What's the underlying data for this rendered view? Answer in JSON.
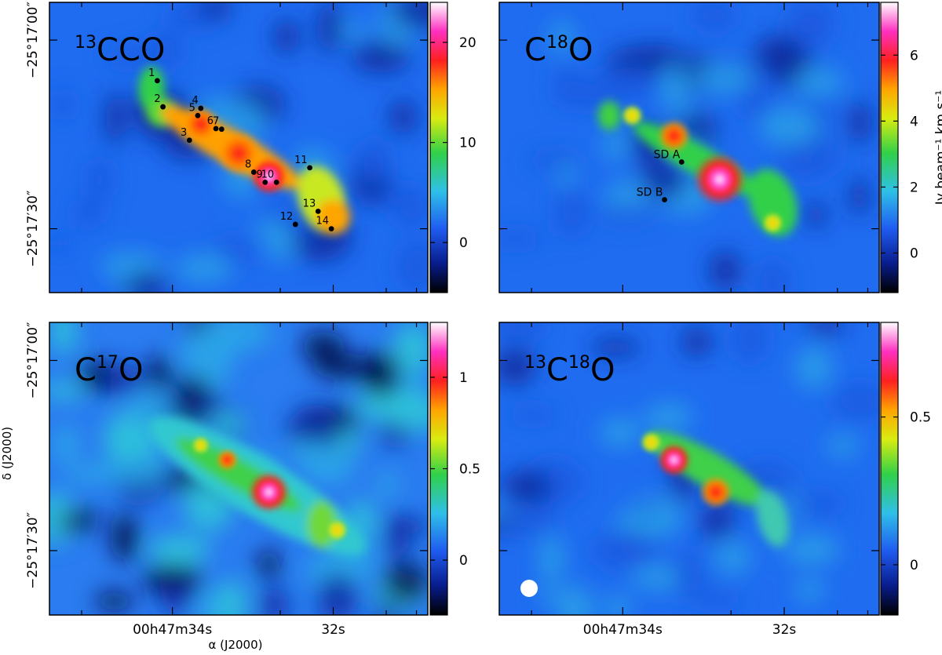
{
  "chart_data": [
    {
      "type": "heatmap",
      "species": {
        "base": "CO",
        "iso1": "13",
        "iso2": ""
      },
      "colorbar": {
        "ticks": [
          0,
          10,
          20
        ],
        "range": [
          -5,
          24
        ]
      },
      "sources": [
        {
          "label": "1",
          "x": 0.285,
          "y": 0.27
        },
        {
          "label": "2",
          "x": 0.3,
          "y": 0.36
        },
        {
          "label": "3",
          "x": 0.37,
          "y": 0.475
        },
        {
          "label": "4",
          "x": 0.4,
          "y": 0.365
        },
        {
          "label": "5",
          "x": 0.392,
          "y": 0.39
        },
        {
          "label": "6",
          "x": 0.44,
          "y": 0.435
        },
        {
          "label": "7",
          "x": 0.455,
          "y": 0.437
        },
        {
          "label": "8",
          "x": 0.54,
          "y": 0.585
        },
        {
          "label": "9",
          "x": 0.57,
          "y": 0.62
        },
        {
          "label": "10",
          "x": 0.6,
          "y": 0.62
        },
        {
          "label": "11",
          "x": 0.688,
          "y": 0.57
        },
        {
          "label": "12",
          "x": 0.65,
          "y": 0.765
        },
        {
          "label": "13",
          "x": 0.71,
          "y": 0.72
        },
        {
          "label": "14",
          "x": 0.745,
          "y": 0.78
        }
      ]
    },
    {
      "type": "heatmap",
      "species": {
        "base": "O",
        "iso1": "",
        "iso2": "18"
      },
      "colorbar": {
        "ticks": [
          0,
          2,
          4,
          6
        ],
        "range": [
          -1.2,
          7.6
        ]
      },
      "colorbar_label": "Jy beam⁻¹ km s⁻¹",
      "sd_points": [
        {
          "label": "SD A",
          "x": 0.48,
          "y": 0.55
        },
        {
          "label": "SD B",
          "x": 0.435,
          "y": 0.68
        }
      ]
    },
    {
      "type": "heatmap",
      "species": {
        "base": "O",
        "iso1": "",
        "iso2": "17"
      },
      "colorbar": {
        "ticks": [
          0,
          0.5,
          1
        ],
        "range": [
          -0.3,
          1.3
        ]
      }
    },
    {
      "type": "heatmap",
      "species": {
        "base": "O",
        "iso1": "13",
        "iso2": "18"
      },
      "colorbar": {
        "ticks": [
          0,
          0.5
        ],
        "range": [
          -0.17,
          0.82
        ]
      },
      "beam": true
    }
  ],
  "axes": {
    "ra_tick_labels": [
      "00h47m34s",
      "32s"
    ],
    "dec_tick_labels": [
      "−25°17′00″",
      "−25°17′30″"
    ],
    "xlabel": "α (J2000)",
    "ylabel": "δ (J2000)"
  }
}
